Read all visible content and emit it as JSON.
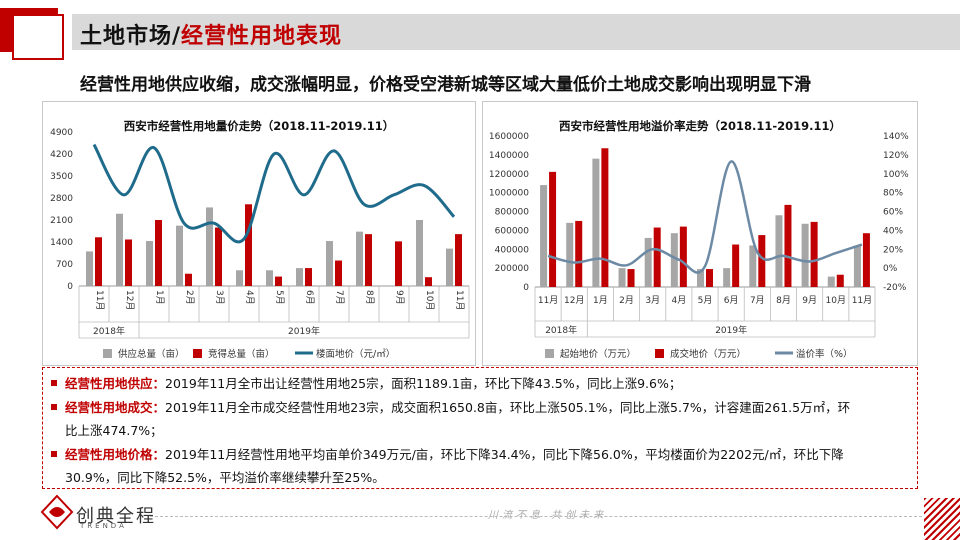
{
  "header": {
    "title_part1": "土地市场/",
    "title_part2": "经营性用地表现",
    "subtitle": "经营性用地供应收缩，成交涨幅明显，价格受空港新城等区域大量低价土地成交影响出现明显下滑"
  },
  "colors": {
    "accent": "#c00000",
    "gray_bar": "#a6a6a6",
    "line": "#1f6b8c",
    "line2": "#6d8aa5"
  },
  "chart_data": [
    {
      "type": "bar",
      "title": "西安市经营性用地量价走势（2018.11-2019.11）",
      "categories": [
        "11月",
        "12月",
        "1月",
        "2月",
        "3月",
        "4月",
        "5月",
        "6月",
        "7月",
        "8月",
        "9月",
        "10月",
        "11月"
      ],
      "year_groups": [
        {
          "label": "2018年",
          "span": 2
        },
        {
          "label": "2019年",
          "span": 11
        }
      ],
      "y_ticks": [
        "4900",
        "4200",
        "3500",
        "2800",
        "2100",
        "1400",
        "700",
        "0"
      ],
      "ylim": [
        0,
        4900
      ],
      "series": [
        {
          "name": "供应总量（亩）",
          "kind": "bar",
          "color": "#a6a6a6",
          "values": [
            1100,
            2300,
            1430,
            1920,
            2500,
            500,
            500,
            570,
            1430,
            1730,
            0,
            2100,
            1190
          ]
        },
        {
          "name": "竞得总量（亩）",
          "kind": "bar",
          "color": "#c00000",
          "values": [
            1550,
            1480,
            2100,
            390,
            1860,
            2600,
            300,
            570,
            810,
            1650,
            1420,
            280,
            1650
          ]
        },
        {
          "name": "楼面地价（元/㎡）",
          "kind": "line",
          "color": "#1f6b8c",
          "values": [
            4500,
            2900,
            4400,
            2000,
            2000,
            1500,
            4200,
            2900,
            4300,
            2600,
            2900,
            3200,
            2202
          ]
        }
      ],
      "legend_position": "bottom"
    },
    {
      "type": "bar",
      "title": "西安市经营性用地溢价率走势（2018.11-2019.11）",
      "categories": [
        "11月",
        "12月",
        "1月",
        "2月",
        "3月",
        "4月",
        "5月",
        "6月",
        "7月",
        "8月",
        "9月",
        "10月",
        "11月"
      ],
      "year_groups": [
        {
          "label": "2018年",
          "span": 2
        },
        {
          "label": "2019年",
          "span": 11
        }
      ],
      "y_ticks": [
        "1600000",
        "1400000",
        "1200000",
        "1000000",
        "800000",
        "600000",
        "400000",
        "200000",
        "0"
      ],
      "y2_ticks": [
        "140%",
        "120%",
        "100%",
        "80%",
        "60%",
        "40%",
        "20%",
        "0%",
        "-20%"
      ],
      "ylim": [
        0,
        1600000
      ],
      "y2lim": [
        -20,
        140
      ],
      "series": [
        {
          "name": "起始地价（万元）",
          "kind": "bar",
          "color": "#a6a6a6",
          "values": [
            1080000,
            680000,
            1360000,
            200000,
            520000,
            570000,
            190000,
            200000,
            440000,
            760000,
            670000,
            110000,
            440000
          ]
        },
        {
          "name": "成交地价（万元）",
          "kind": "bar",
          "color": "#c00000",
          "values": [
            1220000,
            700000,
            1470000,
            190000,
            630000,
            640000,
            190000,
            450000,
            550000,
            870000,
            690000,
            130000,
            570000
          ]
        },
        {
          "name": "溢价率（%）",
          "kind": "line",
          "color": "#6d8aa5",
          "values": [
            13,
            6,
            10,
            3,
            20,
            9,
            2,
            113,
            17,
            13,
            7,
            16,
            25
          ]
        }
      ],
      "legend_position": "bottom"
    }
  ],
  "paragraphs": [
    {
      "key": "经营性用地供应：",
      "line1": "2019年11月全市出让经营性用地25宗，面积1189.1亩，环比下降43.5%，同比上涨9.6%；",
      "line2": ""
    },
    {
      "key": "经营性用地成交：",
      "line1": "2019年11月全市成交经营性用地23宗，成交面积1650.8亩，环比上涨505.1%，同比上涨5.7%，计容建面261.5万㎡，环",
      "line2": "比上涨474.7%；"
    },
    {
      "key": "经营性用地价格：",
      "line1": "2019年11月经营性用地平均亩单价349万元/亩，环比下降34.4%，同比下降56.0%，平均楼面价为2202元/㎡，环比下降",
      "line2": "30.9%，同比下降52.5%，平均溢价率继续攀升至25%。"
    }
  ],
  "footer": {
    "brand": "创典全程",
    "brand_en": "TRENDA",
    "slogan": "川流不息 共创未来",
    "logo_icon": "trenda-logo-icon"
  }
}
